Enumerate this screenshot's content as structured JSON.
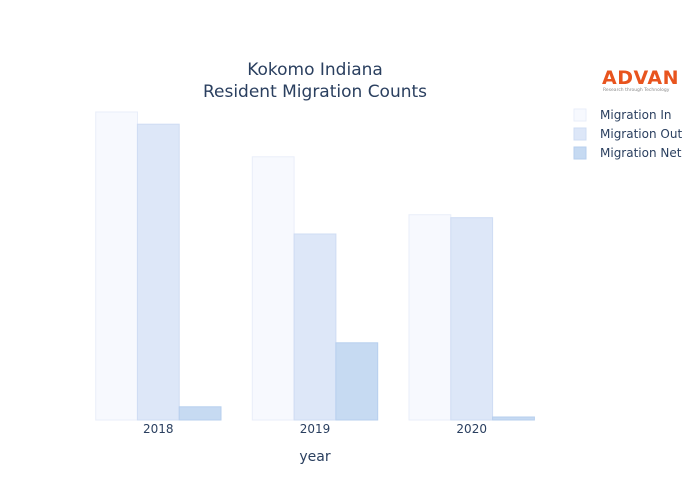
{
  "chart_data": {
    "type": "bar",
    "title": "Kokomo Indiana",
    "subtitle": "Resident Migration Counts",
    "xlabel": "year",
    "ylabel": "",
    "categories": [
      "2018",
      "2019",
      "2020"
    ],
    "ylim": [
      0,
      305
    ],
    "series": [
      {
        "name": "Migration In",
        "values": [
          303,
          259,
          202
        ],
        "color": "#f7f9fe",
        "stroke": "#e9eef9"
      },
      {
        "name": "Migration Out",
        "values": [
          291,
          183,
          199
        ],
        "color": "#dde7f8",
        "stroke": "#cfdcf3"
      },
      {
        "name": "Migration Net",
        "values": [
          13,
          76,
          3
        ],
        "color": "#c6daf2",
        "stroke": "#b7cfee"
      }
    ]
  },
  "logo": {
    "name": "ADVAN",
    "tagline": "Research through Technology",
    "color": "#e8541e"
  }
}
